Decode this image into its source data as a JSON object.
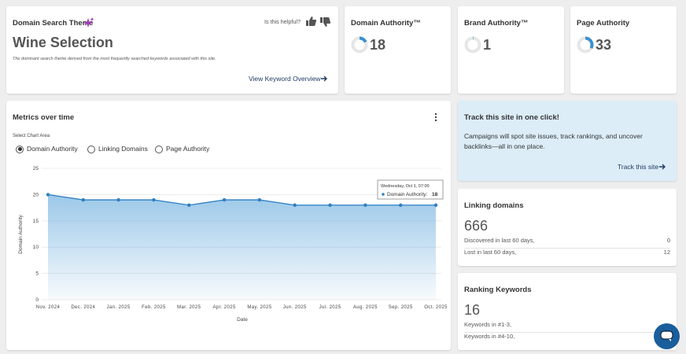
{
  "theme_card": {
    "title": "Domain Search Theme",
    "helpful_prompt": "Is this helpful?",
    "theme": "Wine Selection",
    "description": "The dominant search theme derived from the most frequently searched keywords associated with this site.",
    "link": "View Keyword Overview"
  },
  "scores": [
    {
      "title": "Domain Authority™",
      "value": 18
    },
    {
      "title": "Brand Authority™",
      "value": 1
    },
    {
      "title": "Page Authority",
      "value": 33
    }
  ],
  "metrics": {
    "title": "Metrics over time",
    "select_label": "Select Chart Area",
    "options": [
      "Domain Authority",
      "Linking Domains",
      "Page Authority"
    ]
  },
  "chart_data": {
    "type": "line",
    "x_label": "Date",
    "y_label": "Domain Authority",
    "categories": [
      "Nov. 2024",
      "Dec. 2024",
      "Jan. 2025",
      "Feb. 2025",
      "Mar. 2025",
      "Apr. 2025",
      "May. 2025",
      "Jun. 2025",
      "Jul. 2025",
      "Aug. 2025",
      "Sep. 2025",
      "Oct. 2025"
    ],
    "values": [
      20,
      19,
      19,
      19,
      18,
      19,
      19,
      18,
      18,
      18,
      18,
      18
    ],
    "color": "#2f7fc1",
    "ylim": [
      0,
      25
    ],
    "yticks": [
      0,
      5,
      10,
      15,
      20,
      25
    ],
    "grid": true,
    "tooltip": {
      "date": "Wednesday, Oct 1, 07:00",
      "label": "Domain Authority:"
    }
  },
  "track": {
    "title": "Track this site in one click!",
    "text": "Campaigns will spot site issues, track rankings, and uncover backlinks—all in one place.",
    "link": "Track this site"
  },
  "linking": {
    "title": "Linking domains",
    "value": 666,
    "rows": [
      {
        "label": "Discovered in last 60 days,",
        "value": 0
      },
      {
        "label": "Lost in last 60 days,",
        "value": 12
      }
    ]
  },
  "ranking": {
    "title": "Ranking Keywords",
    "value": 16,
    "rows": [
      {
        "label": "Keywords in #1-3,"
      },
      {
        "label": "Keywords in #4-10,"
      }
    ]
  }
}
